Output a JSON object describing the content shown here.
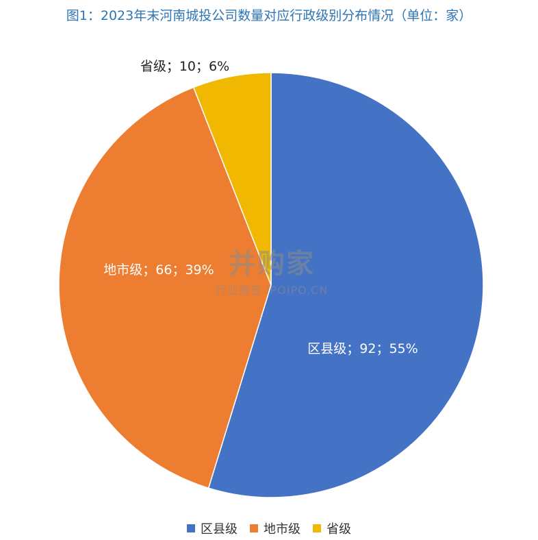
{
  "title": "图1：2023年末河南城投公司数量对应行政级别分布情况（单位：家）",
  "chart_data": {
    "type": "pie",
    "categories": [
      "区县级",
      "地市级",
      "省级"
    ],
    "values": [
      92,
      66,
      10
    ],
    "percents": [
      "55%",
      "39%",
      "6%"
    ],
    "data_labels": [
      "区县级；92；55%",
      "地市级；66；39%",
      "省级；10；6%"
    ],
    "colors": [
      "#4472c4",
      "#ed7d31",
      "#f0b800"
    ],
    "legend_position": "bottom"
  },
  "legend": [
    {
      "label": "区县级",
      "color": "#4472c4"
    },
    {
      "label": "地市级",
      "color": "#ed7d31"
    },
    {
      "label": "省级",
      "color": "#f0b800"
    }
  ],
  "watermark": {
    "logo": "并购家",
    "sub": "行业报告 IPOIPO.CN"
  }
}
